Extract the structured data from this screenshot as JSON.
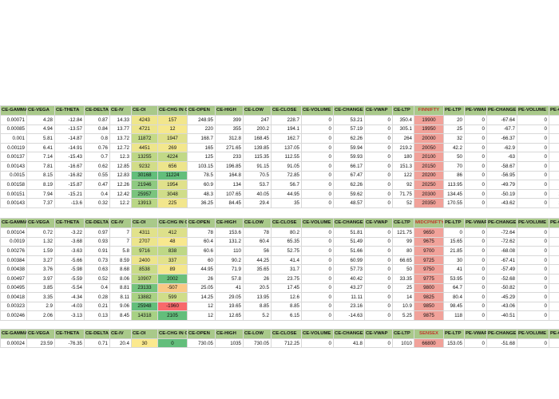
{
  "colors": {
    "header_bg": "#a9c98a",
    "symbol_header_text": "#c0392b",
    "strike_cell_bg": "#f1a29a",
    "grid_line": "#d8d8d8",
    "oi_scale_low": "#fbe98e",
    "oi_scale_high": "#63be7b",
    "oi_scale_negative": "#f8696b"
  },
  "blocks": [
    {
      "symbol": "FINNIFTY",
      "headers": [
        "CE-GAMMA",
        "CE-VEGA",
        "CE-THETA",
        "CE-DELTA",
        "CE-IV",
        "CE-OI",
        "CE-CHG IN OI",
        "CE-OPEN",
        "CE-HIGH",
        "CE-LOW",
        "CE-CLOSE",
        "CE-VOLUME",
        "CE-CHANGE",
        "CE-VWAP",
        "CE-LTP",
        "FINNIFTY",
        "PE-LTP",
        "PE-VWAP",
        "PE-CHANGE",
        "PE-VOLUME",
        "PE-OP"
      ],
      "rows": [
        [
          "0.00071",
          "4.28",
          "-12.84",
          "0.87",
          "14.33",
          "4243",
          "157",
          "248.95",
          "399",
          "247",
          "228.7",
          "0",
          "53.21",
          "0",
          "350.4",
          "19900",
          "20",
          "0",
          "-67.64",
          "0",
          "51.2"
        ],
        [
          "0.00085",
          "4.94",
          "-13.57",
          "0.84",
          "13.77",
          "4721",
          "12",
          "220",
          "355",
          "200.2",
          "194.1",
          "0",
          "57.19",
          "0",
          "305.1",
          "19950",
          "25",
          "0",
          "-67.7",
          "0",
          "74"
        ],
        [
          "0.001",
          "5.81",
          "-14.87",
          "0.8",
          "13.72",
          "11872",
          "1947",
          "168.7",
          "312.8",
          "168.45",
          "162.7",
          "0",
          "62.26",
          "0",
          "264",
          "20000",
          "32",
          "0",
          "-66.37",
          "0",
          "80"
        ],
        [
          "0.00119",
          "6.41",
          "-14.91",
          "0.76",
          "12.72",
          "4451",
          "269",
          "165",
          "271.65",
          "139.85",
          "137.05",
          "0",
          "59.94",
          "0",
          "219.2",
          "20050",
          "42.2",
          "0",
          "-62.9",
          "0",
          "86.1"
        ],
        [
          "0.00137",
          "7.14",
          "-15.43",
          "0.7",
          "12.3",
          "13255",
          "4224",
          "125",
          "233",
          "115.35",
          "112.55",
          "0",
          "59.93",
          "0",
          "180",
          "20100",
          "50",
          "0",
          "-63",
          "0",
          "111.2"
        ],
        [
          "0.00143",
          "7.81",
          "-16.67",
          "0.62",
          "12.85",
          "9232",
          "656",
          "103.15",
          "196.85",
          "91.15",
          "91.05",
          "0",
          "66.17",
          "0",
          "151.3",
          "20150",
          "70",
          "0",
          "-58.67",
          "0",
          "140"
        ],
        [
          "0.0015",
          "8.15",
          "-16.82",
          "0.55",
          "12.83",
          "30168",
          "11224",
          "78.5",
          "164.8",
          "70.5",
          "72.85",
          "0",
          "67.47",
          "0",
          "122",
          "20200",
          "86",
          "0",
          "-56.95",
          "0",
          "169.8"
        ],
        [
          "0.00158",
          "8.19",
          "-15.87",
          "0.47",
          "12.26",
          "21946",
          "1954",
          "60.9",
          "134",
          "53.7",
          "56.7",
          "0",
          "62.26",
          "0",
          "92",
          "20250",
          "113.95",
          "0",
          "-49.79",
          "0",
          "193.5"
        ],
        [
          "0.00151",
          "7.94",
          "-15.21",
          "0.4",
          "12.42",
          "25957",
          "3048",
          "48.3",
          "107.65",
          "40.05",
          "44.95",
          "0",
          "59.62",
          "0",
          "71.75",
          "20300",
          "134.45",
          "0",
          "-50.19",
          "0",
          "231.4"
        ],
        [
          "0.00143",
          "7.37",
          "-13.6",
          "0.32",
          "12.2",
          "13913",
          "225",
          "36.25",
          "84.45",
          "29.4",
          "35",
          "0",
          "48.57",
          "0",
          "52",
          "20350",
          "170.55",
          "0",
          "-43.62",
          "0",
          "268.9"
        ]
      ],
      "oi_fill": [
        0.08,
        0.1,
        0.36,
        0.09,
        0.41,
        0.27,
        1.0,
        0.71,
        0.85,
        0.43
      ],
      "chg_fill": [
        0.06,
        0.03,
        0.18,
        0.05,
        0.38,
        0.09,
        1.0,
        0.18,
        0.28,
        0.06
      ]
    },
    {
      "symbol": "MIDCPNIFTY",
      "headers": [
        "CE-GAMMA",
        "CE-VEGA",
        "CE-THETA",
        "CE-DELTA",
        "CE-IV",
        "CE-OI",
        "CE-CHG IN OI",
        "CE-OPEN",
        "CE-HIGH",
        "CE-LOW",
        "CE-CLOSE",
        "CE-VOLUME",
        "CE-CHANGE",
        "CE-VWAP",
        "CE-LTP",
        "MIDCPNIFTY",
        "PE-LTP",
        "PE-VWAP",
        "PE-CHANGE",
        "PE-VOLUME",
        "PE-OP"
      ],
      "rows": [
        [
          "0.00104",
          "0.72",
          "-3.22",
          "0.97",
          "7",
          "4311",
          "412",
          "78",
          "153.6",
          "78",
          "80.2",
          "0",
          "51.81",
          "0",
          "121.75",
          "9650",
          "0",
          "0",
          "-72.64",
          "0",
          "33.2"
        ],
        [
          "0.0019",
          "1.32",
          "-3.68",
          "0.93",
          "7",
          "2707",
          "48",
          "60.4",
          "131.2",
          "60.4",
          "65.35",
          "0",
          "51.49",
          "0",
          "99",
          "9675",
          "15.65",
          "0",
          "-72.62",
          "0",
          "32.1"
        ],
        [
          "0.00276",
          "1.59",
          "-3.63",
          "0.91",
          "5.8",
          "9716",
          "838",
          "60.6",
          "110",
          "56",
          "52.75",
          "0",
          "51.66",
          "0",
          "80",
          "9700",
          "21.85",
          "0",
          "-68.08",
          "0",
          "54.9"
        ],
        [
          "0.00384",
          "3.27",
          "-5.66",
          "0.73",
          "8.59",
          "2400",
          "337",
          "60",
          "90.2",
          "44.25",
          "41.4",
          "0",
          "60.99",
          "0",
          "66.65",
          "9725",
          "30",
          "0",
          "-67.41",
          "0",
          "30"
        ],
        [
          "0.00438",
          "3.76",
          "-5.98",
          "0.63",
          "8.68",
          "8538",
          "89",
          "44.95",
          "71.9",
          "35.65",
          "31.7",
          "0",
          "57.73",
          "0",
          "50",
          "9750",
          "41",
          "0",
          "-57.49",
          "0",
          "60.1"
        ],
        [
          "0.00497",
          "3.97",
          "-5.59",
          "0.52",
          "8.06",
          "10907",
          "2002",
          "26",
          "57.8",
          "26",
          "23.75",
          "0",
          "40.42",
          "0",
          "33.35",
          "9775",
          "53.95",
          "0",
          "-52.68",
          "0",
          "70"
        ],
        [
          "0.00495",
          "3.85",
          "-5.54",
          "0.4",
          "8.81",
          "23133",
          "-507",
          "25.05",
          "41",
          "20.5",
          "17.45",
          "0",
          "43.27",
          "0",
          "25",
          "9800",
          "64.7",
          "0",
          "-50.82",
          "0",
          "109.9"
        ],
        [
          "0.00418",
          "3.35",
          "-4.34",
          "0.28",
          "8.11",
          "13882",
          "599",
          "14.25",
          "29.05",
          "13.95",
          "12.6",
          "0",
          "11.11",
          "0",
          "14",
          "9825",
          "80.4",
          "0",
          "-45.29",
          "0",
          "102.1"
        ],
        [
          "0.00323",
          "2.9",
          "-4.03",
          "0.21",
          "9.06",
          "25948",
          "-1960",
          "12",
          "19.65",
          "8.85",
          "8.85",
          "0",
          "23.16",
          "0",
          "10.9",
          "9850",
          "98.45",
          "0",
          "-43.06",
          "0",
          "134.9"
        ],
        [
          "0.00246",
          "2.06",
          "-3.13",
          "0.13",
          "8.45",
          "14318",
          "2105",
          "12",
          "12.65",
          "5.2",
          "6.15",
          "0",
          "-14.63",
          "0",
          "5.25",
          "9875",
          "118",
          "0",
          "-40.51",
          "0",
          "132.3"
        ]
      ],
      "oi_fill": [
        0.17,
        0.1,
        0.37,
        0.09,
        0.33,
        0.42,
        0.89,
        0.53,
        1.0,
        0.55
      ],
      "chg_fill": [
        0.2,
        0.02,
        0.4,
        0.16,
        0.04,
        0.95,
        -0.26,
        0.28,
        -1.0,
        1.0
      ]
    },
    {
      "symbol": "SENSEX",
      "headers": [
        "CE-GAMMA",
        "CE-VEGA",
        "CE-THETA",
        "CE-DELTA",
        "CE-IV",
        "CE-OI",
        "CE-CHG IN OI",
        "CE-OPEN",
        "CE-HIGH",
        "CE-LOW",
        "CE-CLOSE",
        "CE-VOLUME",
        "CE-CHANGE",
        "CE-VWAP",
        "CE-LTP",
        "SENSEX",
        "PE-LTP",
        "PE-VWAP",
        "PE-CHANGE",
        "PE-VOLUME",
        "PE-OP"
      ],
      "rows": [
        [
          "0.00024",
          "23.59",
          "-76.35",
          "0.71",
          "20.4",
          "30",
          "0",
          "730.05",
          "1035",
          "730.05",
          "712.25",
          "0",
          "41.8",
          "0",
          "1010",
          "66800",
          "153.05",
          "0",
          "-51.68",
          "0",
          "211"
        ]
      ],
      "oi_fill": [
        0.0
      ],
      "chg_fill": [
        1.0
      ]
    }
  ]
}
